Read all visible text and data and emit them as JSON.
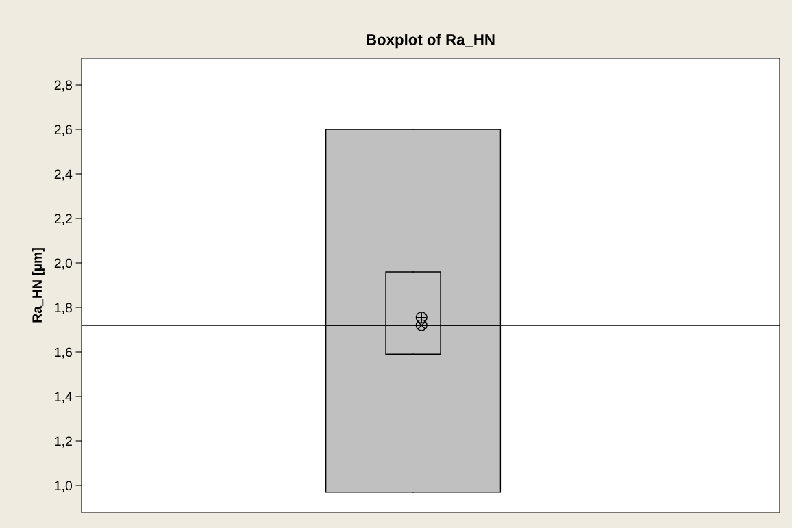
{
  "chart_data": {
    "type": "box",
    "title": "Boxplot of Ra_HN",
    "ylabel": "Ra_HN [µm]",
    "categories": [
      null
    ],
    "series": [
      {
        "color": "#c0c0c0",
        "boxes": [
          {
            "low": 0.97,
            "q1": 0.97,
            "median": 1.72,
            "q3": 2.6,
            "high": 2.6,
            "mean": 1.755
          }
        ]
      },
      {
        "color": null,
        "boxes": [
          {
            "low": 1.59,
            "q1": 1.59,
            "median": 1.72,
            "q3": 1.96,
            "high": 1.96
          }
        ]
      }
    ],
    "ref_lines": [
      {
        "axis": "y",
        "value": 1.72,
        "color": "#000000"
      }
    ],
    "ylim": [
      0.88,
      2.92
    ],
    "yticks": [
      {
        "value": 1.0,
        "label": "1,0"
      },
      {
        "value": 1.2,
        "label": "1,2"
      },
      {
        "value": 1.4,
        "label": "1,4"
      },
      {
        "value": 1.6,
        "label": "1,6"
      },
      {
        "value": 1.8,
        "label": "1,8"
      },
      {
        "value": 2.0,
        "label": "2,0"
      },
      {
        "value": 2.2,
        "label": "2,2"
      },
      {
        "value": 2.4,
        "label": "2,4"
      },
      {
        "value": 2.6,
        "label": "2,6"
      },
      {
        "value": 2.8,
        "label": "2,8"
      }
    ],
    "tick_labels": "y",
    "grid": false
  }
}
